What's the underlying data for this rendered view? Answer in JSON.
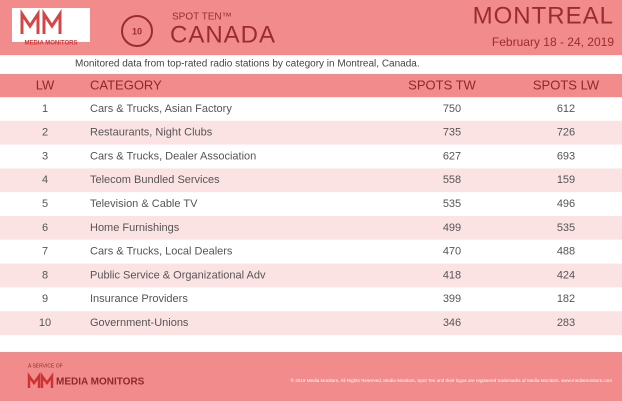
{
  "header": {
    "logo": "MEDIA MONITORS",
    "badge": "10",
    "brand": "SPOT TEN™",
    "country": "CANADA",
    "city": "MONTREAL",
    "dates": "February 18 - 24, 2019"
  },
  "subtitle": "Monitored data from top-rated radio stations by category in Montreal, Canada.",
  "table": {
    "columns": [
      "LW",
      "CATEGORY",
      "SPOTS TW",
      "SPOTS LW"
    ],
    "rows": [
      [
        1,
        "Cars & Trucks, Asian Factory",
        750,
        612
      ],
      [
        2,
        "Restaurants, Night Clubs",
        735,
        726
      ],
      [
        3,
        "Cars & Trucks, Dealer Association",
        627,
        693
      ],
      [
        4,
        "Telecom Bundled Services",
        558,
        159
      ],
      [
        5,
        "Television & Cable TV",
        535,
        496
      ],
      [
        6,
        "Home Furnishings",
        499,
        535
      ],
      [
        7,
        "Cars & Trucks, Local Dealers",
        470,
        488
      ],
      [
        8,
        "Public Service & Organizational Adv",
        418,
        424
      ],
      [
        9,
        "Insurance Providers",
        399,
        182
      ],
      [
        10,
        "Government-Unions",
        346,
        283
      ]
    ]
  },
  "footer": {
    "service": "A SERVICE OF",
    "logo": "MEDIA MONITORS",
    "copyright": "© 2019 Media Monitors. All Rights Reserved. Media Monitors, Spot Ten and their logos are registered trademarks of Media Monitors. www.mediamonitors.com"
  }
}
